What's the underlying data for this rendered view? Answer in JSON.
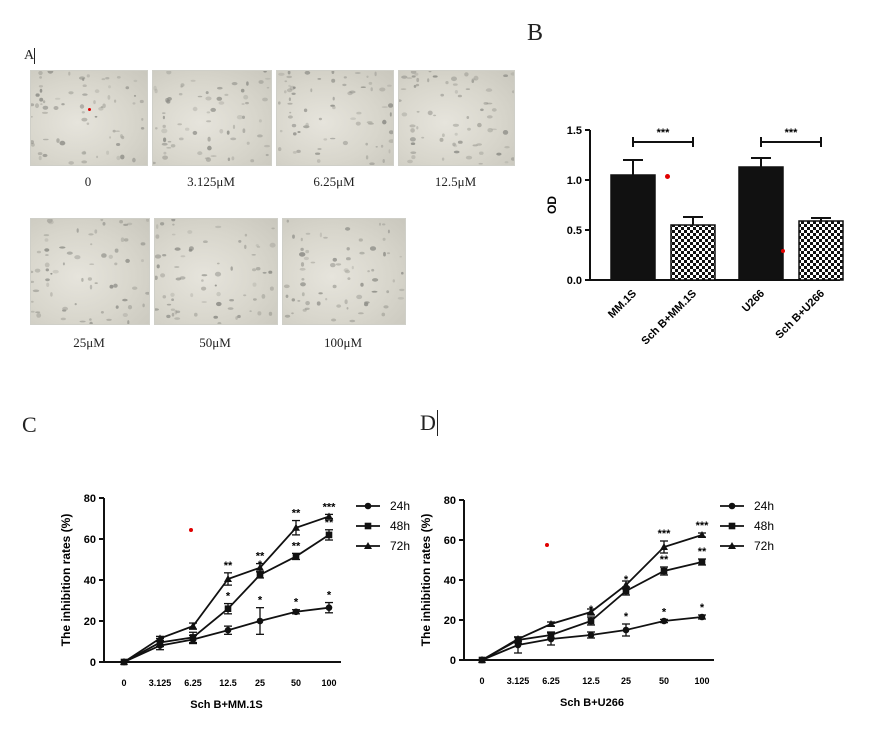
{
  "panels": {
    "A": "A",
    "B": "B",
    "C": "C",
    "D": "D"
  },
  "micrographs": [
    {
      "label": "0"
    },
    {
      "label": "3.125μM"
    },
    {
      "label": "6.25μM"
    },
    {
      "label": "12.5μM"
    },
    {
      "label": "25μM"
    },
    {
      "label": "50μM"
    },
    {
      "label": "100μM"
    }
  ],
  "chart_data": [
    {
      "id": "B",
      "type": "bar",
      "ylabel": "OD",
      "ylim": [
        0,
        1.5
      ],
      "yticks": [
        "0.0",
        "0.5",
        "1.0",
        "1.5"
      ],
      "categories": [
        "MM.1S",
        "Sch B+MM.1S",
        "U266",
        "Sch B+U266"
      ],
      "values": [
        1.05,
        0.55,
        1.13,
        0.59
      ],
      "errors": [
        0.15,
        0.08,
        0.09,
        0.03
      ],
      "patterns": [
        "solid",
        "checker",
        "solid",
        "checker"
      ],
      "significance": [
        {
          "from": 0,
          "to": 1,
          "label": "***",
          "y": 1.38
        },
        {
          "from": 2,
          "to": 3,
          "label": "***",
          "y": 1.38
        }
      ]
    },
    {
      "id": "C",
      "type": "line",
      "xlabel": "Sch B+MM.1S",
      "ylabel": "The inhibition rates (%)",
      "ylim": [
        0,
        80
      ],
      "yticks": [
        "0",
        "20",
        "40",
        "60",
        "80"
      ],
      "categories": [
        "0",
        "3.125",
        "6.25",
        "12.5",
        "25",
        "50",
        "100"
      ],
      "legend_position": "right",
      "series": [
        {
          "name": "24h",
          "marker": "circle",
          "values": [
            0,
            8,
            11,
            15.5,
            20,
            24.5,
            26.5
          ],
          "errors": [
            0,
            2,
            2,
            2,
            6.5,
            1,
            2.5
          ],
          "stars": [
            "",
            "",
            "",
            "",
            "*",
            "*",
            "*"
          ]
        },
        {
          "name": "48h",
          "marker": "square",
          "values": [
            0,
            9.5,
            12,
            26,
            42.5,
            51.5,
            62
          ],
          "errors": [
            0,
            2,
            2.5,
            2.5,
            1.5,
            1.5,
            2.5
          ],
          "stars": [
            "",
            "",
            "",
            "*",
            "*",
            "**",
            "**"
          ]
        },
        {
          "name": "72h",
          "marker": "triangle",
          "values": [
            0,
            11.5,
            17.5,
            40.5,
            46,
            65.5,
            71
          ],
          "errors": [
            0,
            1,
            1.5,
            3,
            2,
            3.5,
            1
          ],
          "stars": [
            "",
            "",
            "",
            "**",
            "**",
            "**",
            "***"
          ]
        }
      ]
    },
    {
      "id": "D",
      "type": "line",
      "xlabel": "Sch B+U266",
      "ylabel": "The inhibition rates (%)",
      "ylim": [
        0,
        80
      ],
      "yticks": [
        "0",
        "20",
        "40",
        "60",
        "80"
      ],
      "categories": [
        "0",
        "3.125",
        "6.25",
        "12.5",
        "25",
        "50",
        "100"
      ],
      "legend_position": "right",
      "series": [
        {
          "name": "24h",
          "marker": "circle",
          "values": [
            0,
            7.5,
            10.5,
            12.5,
            15,
            19.5,
            21.5
          ],
          "errors": [
            0,
            4,
            3,
            1.5,
            3,
            0.8,
            1
          ],
          "stars": [
            "",
            "",
            "",
            "",
            "*",
            "*",
            "*"
          ]
        },
        {
          "name": "48h",
          "marker": "square",
          "values": [
            0,
            10,
            12.5,
            19.5,
            34.5,
            44.5,
            49
          ],
          "errors": [
            0,
            1.5,
            1.5,
            2,
            2,
            2,
            1.5
          ],
          "stars": [
            "",
            "",
            "",
            "*",
            "*",
            "**",
            "**"
          ]
        },
        {
          "name": "72h",
          "marker": "triangle",
          "values": [
            0,
            10.5,
            18,
            24,
            37.5,
            56.5,
            62.5
          ],
          "errors": [
            0,
            1,
            1,
            1.5,
            2,
            3,
            1
          ],
          "stars": [
            "",
            "",
            "",
            "",
            "",
            "***",
            "***"
          ]
        }
      ]
    }
  ]
}
